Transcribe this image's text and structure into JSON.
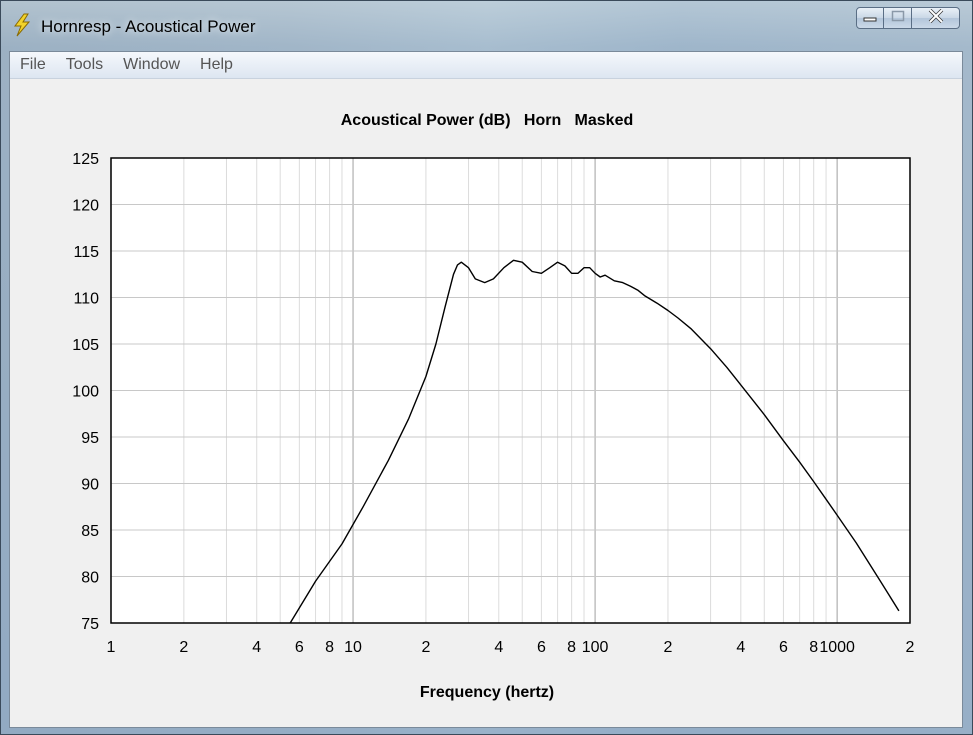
{
  "window": {
    "title": "Hornresp - Acoustical Power",
    "minimize_label": "minimize",
    "maximize_label": "maximize",
    "close_label": "close"
  },
  "menu": {
    "items": [
      "File",
      "Tools",
      "Window",
      "Help"
    ]
  },
  "chart_data": {
    "type": "line",
    "title": "Acoustical Power (dB)   Horn   Masked",
    "xlabel": "Frequency (hertz)",
    "ylabel": "",
    "x_scale": "log",
    "xlim": [
      1,
      2000
    ],
    "ylim": [
      75,
      125
    ],
    "y_ticks": [
      75,
      80,
      85,
      90,
      95,
      100,
      105,
      110,
      115,
      120,
      125
    ],
    "x_tick_labels": [
      {
        "x": 1,
        "label": "1"
      },
      {
        "x": 2,
        "label": "2"
      },
      {
        "x": 4,
        "label": "4"
      },
      {
        "x": 6,
        "label": "6"
      },
      {
        "x": 8,
        "label": "8"
      },
      {
        "x": 10,
        "label": "10"
      },
      {
        "x": 20,
        "label": "2"
      },
      {
        "x": 40,
        "label": "4"
      },
      {
        "x": 60,
        "label": "6"
      },
      {
        "x": 80,
        "label": "8"
      },
      {
        "x": 100,
        "label": "100"
      },
      {
        "x": 200,
        "label": "2"
      },
      {
        "x": 400,
        "label": "4"
      },
      {
        "x": 600,
        "label": "6"
      },
      {
        "x": 800,
        "label": "8"
      },
      {
        "x": 1000,
        "label": "1000"
      },
      {
        "x": 2000,
        "label": "2"
      }
    ],
    "grid": true,
    "series": [
      {
        "color": "#000000",
        "x": [
          5.5,
          7,
          9,
          11,
          14,
          17,
          20,
          22,
          24,
          26,
          27,
          28,
          30,
          32,
          35,
          38,
          42,
          46,
          50,
          55,
          60,
          65,
          70,
          75,
          80,
          85,
          90,
          95,
          100,
          105,
          110,
          120,
          130,
          140,
          150,
          160,
          180,
          200,
          220,
          250,
          300,
          350,
          400,
          500,
          600,
          700,
          800,
          900,
          1000,
          1200,
          1500,
          1800
        ],
        "y": [
          75,
          79.5,
          83.5,
          87.5,
          92.5,
          97,
          101.5,
          105,
          109,
          112.5,
          113.5,
          113.8,
          113.2,
          112,
          111.6,
          112,
          113.2,
          114,
          113.8,
          112.8,
          112.6,
          113.2,
          113.8,
          113.4,
          112.6,
          112.6,
          113.2,
          113.2,
          112.6,
          112.2,
          112.4,
          111.8,
          111.6,
          111.2,
          110.8,
          110.2,
          109.4,
          108.6,
          107.8,
          106.6,
          104.5,
          102.5,
          100.6,
          97.4,
          94.6,
          92.3,
          90.2,
          88.3,
          86.6,
          83.6,
          79.6,
          76.3
        ]
      }
    ]
  }
}
